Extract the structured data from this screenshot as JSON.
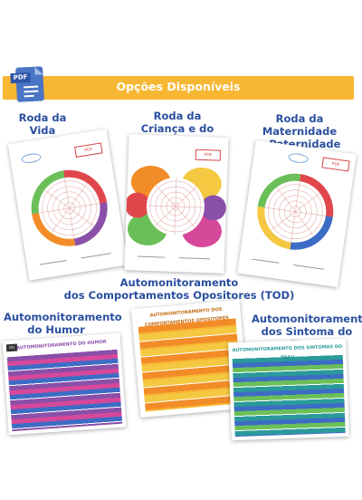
{
  "banner": {
    "title": "Opções Disponíveis",
    "icon": "pdf-document-icon",
    "icon_label": "PDF",
    "color": "#f7b733"
  },
  "products": {
    "roda_vida": {
      "title_line1": "Roda da",
      "title_line2": "Vida"
    },
    "roda_crianca": {
      "title_line1": "Roda da",
      "title_line2": "Criança e do Adolescente"
    },
    "roda_maternidade": {
      "title_line1": "Roda da Maternidade",
      "title_line2": "e Paternidade"
    },
    "tod": {
      "title_line1": "Automonitoramento",
      "title_line2": "dos Comportamentos Opositores (TOD)"
    },
    "humor": {
      "title_line1": "Automonitoramento",
      "title_line2": "do Humor"
    },
    "tdah": {
      "title_line1": "Automonitoramento",
      "title_line2": "dos Sintoma do TDAH"
    }
  },
  "colors": {
    "title": "#2b4fa0",
    "accent_red": "#e0474c",
    "accent_orange": "#f28c28",
    "accent_yellow": "#f5c842",
    "accent_green": "#6bbf59",
    "accent_blue": "#3d6cc4",
    "accent_purple": "#8a4fa8",
    "accent_pink": "#d6489a",
    "accent_teal": "#2b9a9a"
  }
}
